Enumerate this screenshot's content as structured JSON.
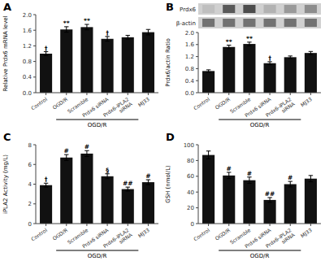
{
  "chart_data": [
    {
      "type": "bar",
      "title": "A",
      "ylabel": "Relative Prdx6 mRNA level",
      "categories": [
        "Control",
        "OGD/R",
        "Scramble",
        "Prdx6 siRNA",
        "Prdx6-iPLA2\nsiRNA",
        "MJ33"
      ],
      "values": [
        1.0,
        1.62,
        1.68,
        1.38,
        1.42,
        1.55
      ],
      "errors": [
        0.05,
        0.07,
        0.07,
        0.06,
        0.05,
        0.07
      ],
      "annotations": [
        "†",
        "**",
        "**",
        "†",
        null,
        null
      ],
      "group_label": "OGD/R",
      "color": "#111111",
      "ylim": [
        0,
        2.0
      ],
      "yticks": [
        {
          "value": 0,
          "label": "0.0"
        },
        0.4,
        0.8,
        1.2,
        1.6,
        {
          "value": 2,
          "label": "2.0"
        }
      ],
      "grid": false
    },
    {
      "type": "bar",
      "title": "B",
      "ylabel": "Prdx6/actin Ratio",
      "categories": [
        "Control",
        "OGD/R",
        "Scramble",
        "Prdx6 siRNA",
        "Prdx6-iPLA2\nsiRNA",
        "MJ33"
      ],
      "values": [
        0.72,
        1.52,
        1.62,
        0.98,
        1.18,
        1.32
      ],
      "errors": [
        0.04,
        0.06,
        0.06,
        0.05,
        0.04,
        0.05
      ],
      "annotations": [
        null,
        "**",
        "**",
        "†",
        null,
        null
      ],
      "group_label": "OGD/R",
      "color": "#111111",
      "ylim": [
        0,
        2.0
      ],
      "yticks": [
        {
          "value": 0,
          "label": "0.0"
        },
        0.4,
        0.8,
        1.2,
        1.6,
        {
          "value": 2,
          "label": "2.0"
        }
      ],
      "grid": false,
      "blot": [
        {
          "name": "Prdx6",
          "values": [
            0.75,
            0.35,
            0.3,
            0.7,
            0.6,
            0.55
          ]
        },
        {
          "name": "β-actin",
          "values": [
            0.45,
            0.45,
            0.45,
            0.45,
            0.45,
            0.45
          ]
        }
      ]
    },
    {
      "type": "bar",
      "title": "C",
      "ylabel": "iPLA2 Activity (mg/L)",
      "categories": [
        "Control",
        "OGD/R",
        "Scramble",
        "Prdx6 siRNA",
        "Prdx6-iPLA2\nsiRNA",
        "MJ33"
      ],
      "values": [
        3.9,
        6.7,
        7.1,
        4.8,
        3.5,
        4.2
      ],
      "errors": [
        0.2,
        0.3,
        0.3,
        0.25,
        0.2,
        0.25
      ],
      "annotations": [
        "†",
        "#",
        "#",
        "§",
        "##",
        "#"
      ],
      "group_label": "OGD/R",
      "color": "#111111",
      "ylim": [
        0,
        8
      ],
      "yticks": [
        0,
        2,
        4,
        6,
        8
      ],
      "grid": false
    },
    {
      "type": "bar",
      "title": "D",
      "ylabel": "GSH (nmol/L)",
      "categories": [
        "Control",
        "OGD/R",
        "Scramble",
        "Prdx6 siRNA",
        "Prdx6-iPLA2\nsiRNA",
        "MJ33"
      ],
      "values": [
        87,
        61,
        55,
        30,
        50,
        57
      ],
      "errors": [
        5,
        4,
        4,
        3,
        3.5,
        4
      ],
      "annotations": [
        null,
        "#",
        "#",
        "##",
        "#",
        null
      ],
      "group_label": "OGD/R",
      "color": "#111111",
      "ylim": [
        0,
        100
      ],
      "yticks": [
        0,
        20,
        40,
        60,
        80,
        100
      ],
      "grid": false
    }
  ]
}
